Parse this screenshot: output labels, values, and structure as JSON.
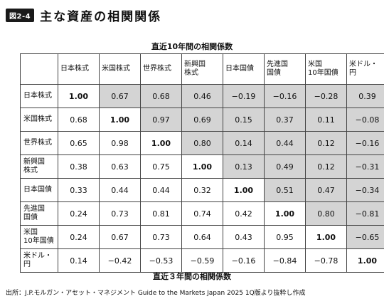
{
  "figure": {
    "badge": "図2-4",
    "title": "主な資産の相関関係"
  },
  "captions": {
    "upper": "直近10年間の相関係数",
    "lower": "直近３年間の相関係数"
  },
  "source": "出所：J.P.モルガン・アセット・マネジメント Guide to the Markets Japan 2025 1Q版より抜粋し作成",
  "chart_data": {
    "type": "table",
    "columns": [
      "日本株式",
      "米国株式",
      "世界株式",
      "新興国\n株式",
      "日本国債",
      "先進国\n国債",
      "米国\n10年国債",
      "米ドル・\n円"
    ],
    "rows": [
      {
        "label": "日本株式",
        "values": [
          "1.00",
          "0.67",
          "0.68",
          "0.46",
          "−0.19",
          "−0.16",
          "−0.28",
          "0.39"
        ]
      },
      {
        "label": "米国株式",
        "values": [
          "0.68",
          "1.00",
          "0.97",
          "0.69",
          "0.15",
          "0.37",
          "0.11",
          "−0.08"
        ]
      },
      {
        "label": "世界株式",
        "values": [
          "0.65",
          "0.98",
          "1.00",
          "0.80",
          "0.14",
          "0.44",
          "0.12",
          "−0.16"
        ]
      },
      {
        "label": "新興国\n株式",
        "values": [
          "0.38",
          "0.63",
          "0.75",
          "1.00",
          "0.13",
          "0.49",
          "0.12",
          "−0.31"
        ]
      },
      {
        "label": "日本国債",
        "values": [
          "0.33",
          "0.44",
          "0.44",
          "0.32",
          "1.00",
          "0.51",
          "0.47",
          "−0.34"
        ]
      },
      {
        "label": "先進国\n国債",
        "values": [
          "0.24",
          "0.73",
          "0.81",
          "0.74",
          "0.42",
          "1.00",
          "0.80",
          "−0.81"
        ]
      },
      {
        "label": "米国\n10年国債",
        "values": [
          "0.24",
          "0.67",
          "0.73",
          "0.64",
          "0.43",
          "0.95",
          "1.00",
          "−0.65"
        ]
      },
      {
        "label": "米ドル・\n円",
        "values": [
          "0.14",
          "−0.42",
          "−0.53",
          "−0.59",
          "−0.16",
          "−0.84",
          "−0.78",
          "1.00"
        ]
      }
    ],
    "shade_color": "#d4d4d4"
  }
}
